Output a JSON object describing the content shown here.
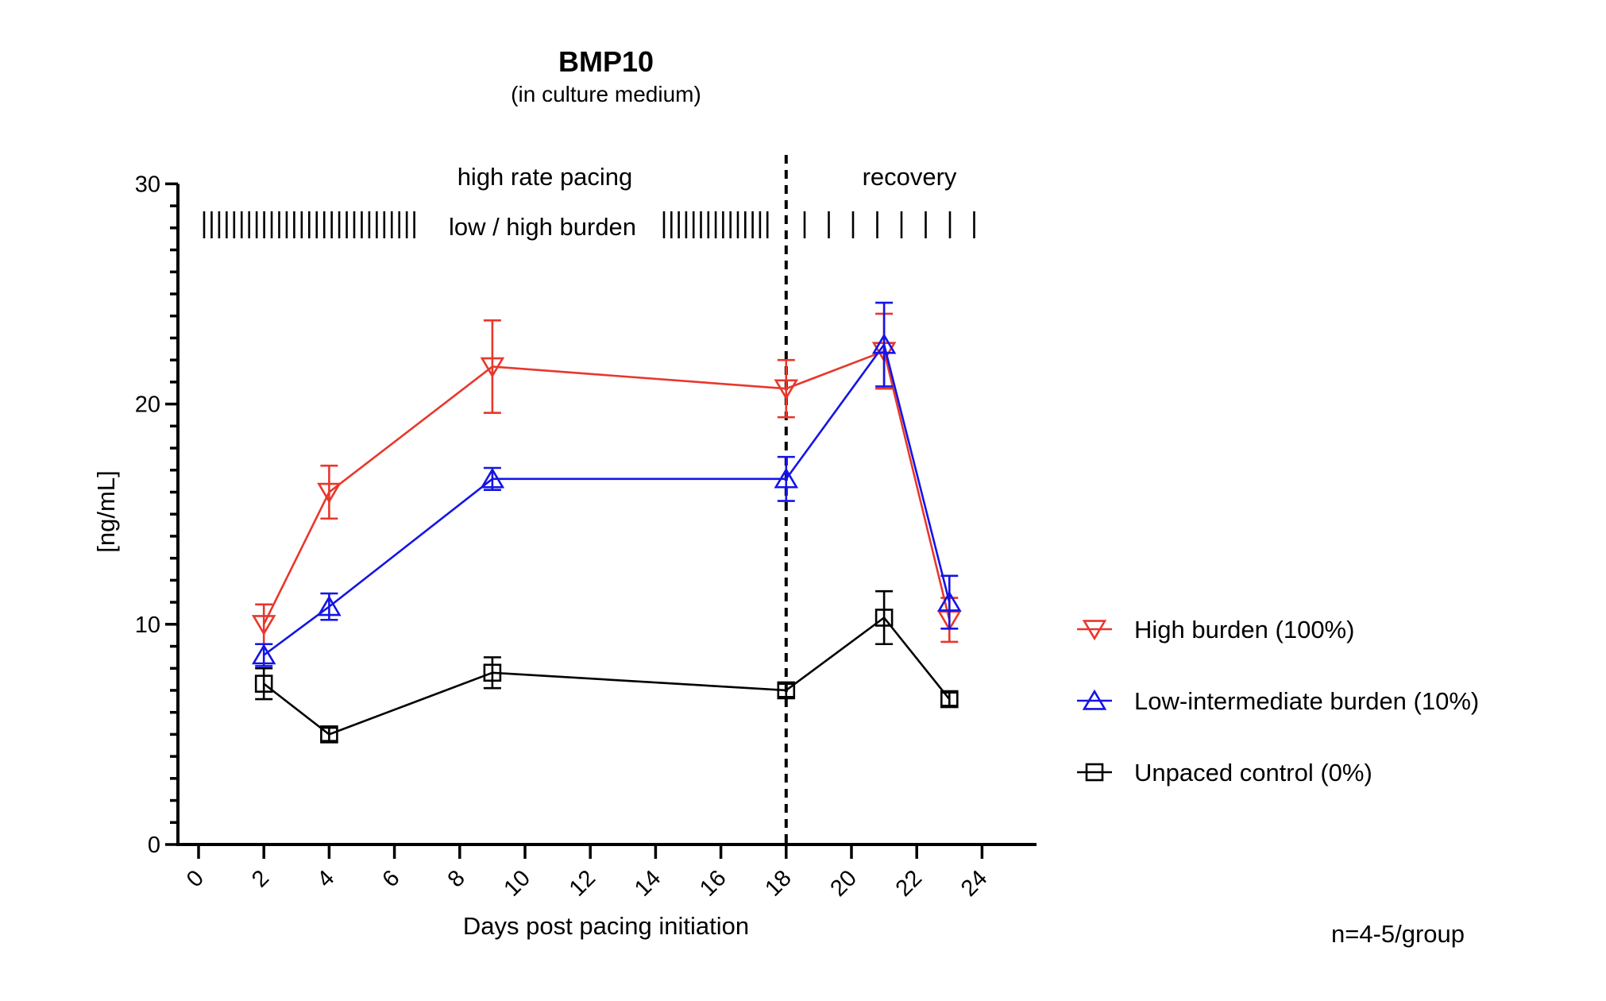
{
  "chart_data": {
    "type": "line",
    "title": "BMP10",
    "subtitle": "(in culture medium)",
    "xlabel": "Days post pacing initiation",
    "ylabel": "[ng/mL]",
    "xlim": [
      -0.7,
      26
    ],
    "ylim": [
      0,
      30
    ],
    "xticks": [
      0,
      2,
      4,
      6,
      8,
      10,
      12,
      14,
      16,
      18,
      20,
      22,
      24
    ],
    "yticks": [
      0,
      10,
      20,
      30
    ],
    "y_minor_step": 1,
    "grid": false,
    "legend_position": "right",
    "divider_x": 18,
    "annotations": {
      "phase1": "high rate pacing",
      "phase2": "recovery",
      "burden": "low / high burden",
      "sample_size": "n=4-5/group"
    },
    "burden_marks": {
      "dense_left_count": 29,
      "dense_right_count": 15,
      "sparse_recovery_count": 8
    },
    "series": [
      {
        "name": "High burden (100%)",
        "color": "#e8372c",
        "marker": "triangle-down",
        "x": [
          2,
          4,
          9,
          18,
          21,
          23
        ],
        "y": [
          10.0,
          16.0,
          21.7,
          20.7,
          22.4,
          10.2
        ],
        "err": [
          0.9,
          1.2,
          2.1,
          1.3,
          1.7,
          1.0
        ]
      },
      {
        "name": "Low-intermediate burden (10%)",
        "color": "#1414e6",
        "marker": "triangle-up",
        "x": [
          2,
          4,
          9,
          18,
          21,
          23
        ],
        "y": [
          8.6,
          10.8,
          16.6,
          16.6,
          22.7,
          11.0
        ],
        "err": [
          0.5,
          0.6,
          0.5,
          1.0,
          1.9,
          1.2
        ]
      },
      {
        "name": "Unpaced control (0%)",
        "color": "#000000",
        "marker": "square",
        "x": [
          2,
          4,
          9,
          18,
          21,
          23
        ],
        "y": [
          7.3,
          5.0,
          7.8,
          7.0,
          10.3,
          6.6
        ],
        "err": [
          0.7,
          0.3,
          0.7,
          0.3,
          1.2,
          0.3
        ]
      }
    ]
  }
}
